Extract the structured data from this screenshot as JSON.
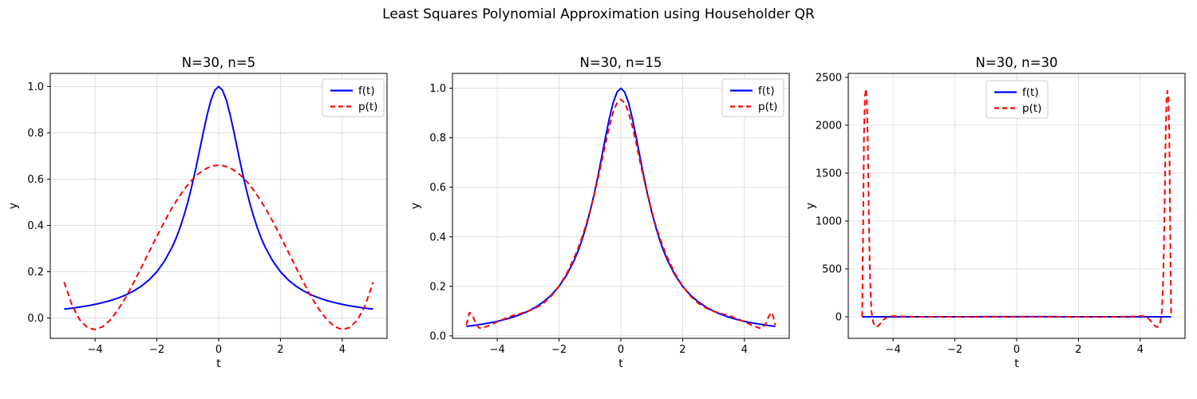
{
  "figure": {
    "suptitle": "Least Squares Polynomial Approximation using Householder QR",
    "background": "#ffffff",
    "colors": {
      "f_line": "#0000ff",
      "p_line": "#ff0000",
      "grid": "#e0e0e0",
      "axis": "#000000",
      "legend_border": "#cccccc",
      "text": "#000000"
    }
  },
  "chart_data": [
    {
      "type": "line",
      "title": "N=30, n=5",
      "xlabel": "t",
      "ylabel": "y",
      "xlim": [
        -5.45,
        5.45
      ],
      "ylim": [
        -0.088,
        1.057
      ],
      "xticks": [
        -4,
        -2,
        0,
        2,
        4
      ],
      "xtick_labels": [
        "−4",
        "−2",
        "0",
        "2",
        "4"
      ],
      "yticks": [
        0.0,
        0.2,
        0.4,
        0.6,
        0.8,
        1.0
      ],
      "ytick_labels": [
        "0.0",
        "0.2",
        "0.4",
        "0.6",
        "0.8",
        "1.0"
      ],
      "grid": true,
      "legend_pos": "upper right",
      "series": [
        {
          "name": "f(t)",
          "color": "#0000ff",
          "line_style": "solid",
          "x": [
            -5,
            -4.75,
            -4.5,
            -4.25,
            -4,
            -3.75,
            -3.5,
            -3.25,
            -3,
            -2.75,
            -2.5,
            -2.25,
            -2,
            -1.75,
            -1.5,
            -1.375,
            -1.25,
            -1.125,
            -1,
            -0.875,
            -0.75,
            -0.625,
            -0.5,
            -0.375,
            -0.25,
            -0.125,
            0,
            0.125,
            0.25,
            0.375,
            0.5,
            0.625,
            0.75,
            0.875,
            1,
            1.125,
            1.25,
            1.375,
            1.5,
            1.75,
            2,
            2.25,
            2.5,
            2.75,
            3,
            3.25,
            3.5,
            3.75,
            4,
            4.25,
            4.5,
            4.75,
            5
          ],
          "y": [
            0.0385,
            0.0424,
            0.0471,
            0.0525,
            0.0588,
            0.0664,
            0.0755,
            0.0865,
            0.1,
            0.1168,
            0.1379,
            0.1649,
            0.2,
            0.2462,
            0.3077,
            0.346,
            0.3902,
            0.4414,
            0.5,
            0.5664,
            0.64,
            0.7191,
            0.8,
            0.8767,
            0.9412,
            0.9846,
            1,
            0.9846,
            0.9412,
            0.8767,
            0.8,
            0.7191,
            0.64,
            0.5664,
            0.5,
            0.4414,
            0.3902,
            0.346,
            0.3077,
            0.2462,
            0.2,
            0.1649,
            0.1379,
            0.1168,
            0.1,
            0.0865,
            0.0755,
            0.0664,
            0.0588,
            0.0525,
            0.0471,
            0.0424,
            0.0385
          ]
        },
        {
          "name": "p(t)",
          "color": "#ff0000",
          "line_style": "dashed",
          "x": [
            -5,
            -4.75,
            -4.5,
            -4.25,
            -4,
            -3.75,
            -3.5,
            -3.25,
            -3,
            -2.75,
            -2.5,
            -2.25,
            -2,
            -1.75,
            -1.5,
            -1.375,
            -1.25,
            -1.125,
            -1,
            -0.875,
            -0.75,
            -0.625,
            -0.5,
            -0.375,
            -0.25,
            -0.125,
            0,
            0.125,
            0.25,
            0.375,
            0.5,
            0.625,
            0.75,
            0.875,
            1,
            1.125,
            1.25,
            1.375,
            1.5,
            1.75,
            2,
            2.25,
            2.5,
            2.75,
            3,
            3.25,
            3.5,
            3.75,
            4,
            4.25,
            4.5,
            4.75,
            5
          ],
          "y": [
            0.155,
            0.0565,
            -0.0072,
            -0.0411,
            -0.05,
            -0.0372,
            -0.0069,
            0.0371,
            0.0914,
            0.153,
            0.219,
            0.2866,
            0.3536,
            0.4177,
            0.4771,
            0.5045,
            0.5301,
            0.5538,
            0.5753,
            0.5947,
            0.6117,
            0.6263,
            0.6383,
            0.6478,
            0.6545,
            0.6586,
            0.66,
            0.6586,
            0.6545,
            0.6478,
            0.6383,
            0.6263,
            0.6117,
            0.5947,
            0.5753,
            0.5538,
            0.5301,
            0.5045,
            0.4771,
            0.4177,
            0.3536,
            0.2866,
            0.219,
            0.153,
            0.0914,
            0.0371,
            -0.0069,
            -0.0372,
            -0.05,
            -0.0411,
            -0.0072,
            0.0565,
            0.155
          ]
        }
      ]
    },
    {
      "type": "line",
      "title": "N=30, n=15",
      "xlabel": "t",
      "ylabel": "y",
      "xlim": [
        -5.45,
        5.45
      ],
      "ylim": [
        -0.01,
        1.06
      ],
      "xticks": [
        -4,
        -2,
        0,
        2,
        4
      ],
      "xtick_labels": [
        "−4",
        "−2",
        "0",
        "2",
        "4"
      ],
      "yticks": [
        0.0,
        0.2,
        0.4,
        0.6,
        0.8,
        1.0
      ],
      "ytick_labels": [
        "0.0",
        "0.2",
        "0.4",
        "0.6",
        "0.8",
        "1.0"
      ],
      "grid": true,
      "legend_pos": "upper right",
      "series": [
        {
          "name": "f(t)",
          "color": "#0000ff",
          "line_style": "solid",
          "x": [
            -5,
            -4.75,
            -4.5,
            -4.25,
            -4,
            -3.75,
            -3.5,
            -3.25,
            -3,
            -2.75,
            -2.5,
            -2.25,
            -2,
            -1.75,
            -1.5,
            -1.375,
            -1.25,
            -1.125,
            -1,
            -0.875,
            -0.75,
            -0.625,
            -0.5,
            -0.375,
            -0.25,
            -0.125,
            0,
            0.125,
            0.25,
            0.375,
            0.5,
            0.625,
            0.75,
            0.875,
            1,
            1.125,
            1.25,
            1.375,
            1.5,
            1.75,
            2,
            2.25,
            2.5,
            2.75,
            3,
            3.25,
            3.5,
            3.75,
            4,
            4.25,
            4.5,
            4.75,
            5
          ],
          "y": [
            0.0385,
            0.0424,
            0.0471,
            0.0525,
            0.0588,
            0.0664,
            0.0755,
            0.0865,
            0.1,
            0.1168,
            0.1379,
            0.1649,
            0.2,
            0.2462,
            0.3077,
            0.346,
            0.3902,
            0.4414,
            0.5,
            0.5664,
            0.64,
            0.7191,
            0.8,
            0.8767,
            0.9412,
            0.9846,
            1,
            0.9846,
            0.9412,
            0.8767,
            0.8,
            0.7191,
            0.64,
            0.5664,
            0.5,
            0.4414,
            0.3902,
            0.346,
            0.3077,
            0.2462,
            0.2,
            0.1649,
            0.1379,
            0.1168,
            0.1,
            0.0865,
            0.0755,
            0.0664,
            0.0588,
            0.0525,
            0.0471,
            0.0424,
            0.0385
          ]
        },
        {
          "name": "p(t)",
          "color": "#ff0000",
          "line_style": "dashed",
          "x": [
            -5,
            -4.9,
            -4.8,
            -4.7,
            -4.6,
            -4.5,
            -4.25,
            -4,
            -3.75,
            -3.5,
            -3.25,
            -3,
            -2.75,
            -2.5,
            -2.25,
            -2,
            -1.75,
            -1.5,
            -1.375,
            -1.25,
            -1.125,
            -1,
            -0.875,
            -0.75,
            -0.625,
            -0.5,
            -0.375,
            -0.25,
            -0.125,
            0,
            0.125,
            0.25,
            0.375,
            0.5,
            0.625,
            0.75,
            0.875,
            1,
            1.125,
            1.25,
            1.375,
            1.5,
            1.75,
            2,
            2.25,
            2.5,
            2.75,
            3,
            3.25,
            3.5,
            3.75,
            4,
            4.25,
            4.5,
            4.6,
            4.7,
            4.8,
            4.9,
            5
          ],
          "y": [
            0.0435,
            0.094,
            0.082,
            0.053,
            0.033,
            0.031,
            0.0425,
            0.057,
            0.07,
            0.082,
            0.09,
            0.1,
            0.113,
            0.132,
            0.161,
            0.201,
            0.252,
            0.318,
            0.357,
            0.4,
            0.448,
            0.504,
            0.563,
            0.632,
            0.701,
            0.776,
            0.844,
            0.903,
            0.941,
            0.955,
            0.941,
            0.903,
            0.844,
            0.776,
            0.701,
            0.632,
            0.563,
            0.504,
            0.448,
            0.4,
            0.357,
            0.318,
            0.252,
            0.201,
            0.161,
            0.132,
            0.113,
            0.1,
            0.09,
            0.082,
            0.07,
            0.057,
            0.0425,
            0.031,
            0.033,
            0.053,
            0.082,
            0.094,
            0.0435
          ]
        }
      ]
    },
    {
      "type": "line",
      "title": "N=30, n=30",
      "xlabel": "t",
      "ylabel": "y",
      "xlim": [
        -5.45,
        5.45
      ],
      "ylim": [
        -225,
        2541
      ],
      "xticks": [
        -4,
        -2,
        0,
        2,
        4
      ],
      "xtick_labels": [
        "−4",
        "−2",
        "0",
        "2",
        "4"
      ],
      "yticks": [
        0,
        500,
        1000,
        1500,
        2000,
        2500
      ],
      "ytick_labels": [
        "0",
        "500",
        "1000",
        "1500",
        "2000",
        "2500"
      ],
      "grid": true,
      "legend_pos": "upper center",
      "series": [
        {
          "name": "f(t)",
          "color": "#0000ff",
          "line_style": "solid",
          "x": [
            -5,
            -4.75,
            -4.5,
            -4.25,
            -4,
            -3.75,
            -3.5,
            -3.25,
            -3,
            -2.75,
            -2.5,
            -2.25,
            -2,
            -1.75,
            -1.5,
            -1.25,
            -1,
            -0.75,
            -0.5,
            -0.25,
            0,
            0.25,
            0.5,
            0.75,
            1,
            1.25,
            1.5,
            1.75,
            2,
            2.25,
            2.5,
            2.75,
            3,
            3.25,
            3.5,
            3.75,
            4,
            4.25,
            4.5,
            4.75,
            5
          ],
          "y": [
            0.0385,
            0.0424,
            0.0471,
            0.0525,
            0.0588,
            0.0664,
            0.0755,
            0.0865,
            0.1,
            0.1168,
            0.1379,
            0.1649,
            0.2,
            0.2462,
            0.3077,
            0.3902,
            0.5,
            0.64,
            0.8,
            0.9412,
            1,
            0.9412,
            0.8,
            0.64,
            0.5,
            0.3902,
            0.3077,
            0.2462,
            0.2,
            0.1649,
            0.1379,
            0.1168,
            0.1,
            0.0865,
            0.0755,
            0.0664,
            0.0588,
            0.0525,
            0.0471,
            0.0424,
            0.0385
          ]
        },
        {
          "name": "p(t)",
          "color": "#ff0000",
          "line_style": "dashed",
          "x": [
            -5,
            -4.97,
            -4.94,
            -4.91,
            -4.88,
            -4.85,
            -4.82,
            -4.79,
            -4.75,
            -4.7,
            -4.65,
            -4.6,
            -4.55,
            -4.5,
            -4.45,
            -4.4,
            -4.3,
            -4.2,
            -4.1,
            -4,
            -3.8,
            -3.5,
            -3,
            -2.5,
            -2,
            -1,
            0,
            1,
            2,
            2.5,
            3,
            3.5,
            3.8,
            4,
            4.1,
            4.2,
            4.3,
            4.4,
            4.45,
            4.5,
            4.55,
            4.6,
            4.65,
            4.7,
            4.75,
            4.79,
            4.82,
            4.85,
            4.88,
            4.91,
            4.94,
            4.97,
            5
          ],
          "y": [
            0.04,
            900,
            1900,
            2300,
            2380,
            2280,
            1850,
            1150,
            450,
            60,
            -50,
            -90,
            -105,
            -100,
            -85,
            -65,
            -28,
            -5,
            6,
            8,
            4,
            1,
            0.3,
            0.2,
            0.2,
            0.5,
            1,
            0.5,
            0.2,
            0.2,
            0.3,
            1,
            4,
            8,
            6,
            -5,
            -28,
            -65,
            -85,
            -100,
            -108,
            -95,
            -55,
            60,
            450,
            1150,
            1850,
            2260,
            2360,
            2280,
            1880,
            890,
            0.04
          ]
        }
      ]
    }
  ]
}
